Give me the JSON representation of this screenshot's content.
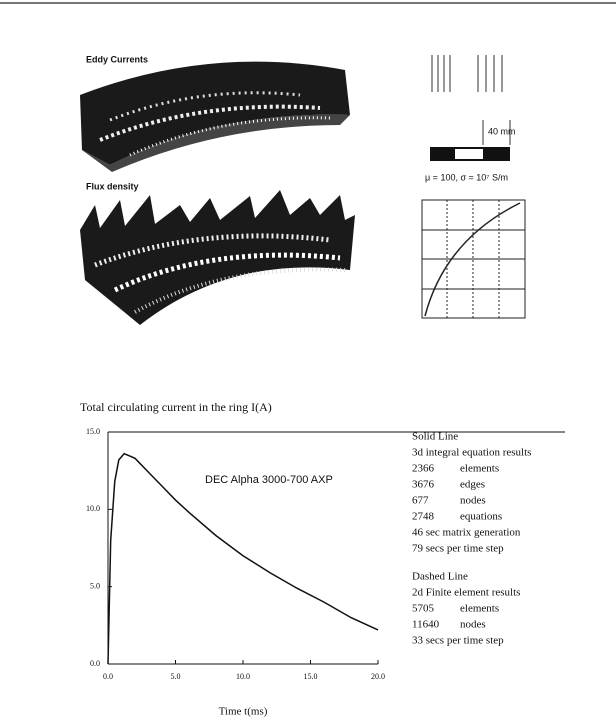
{
  "figure": {
    "eddy_label": "Eddy Currents",
    "flux_label": "Flux density",
    "dimension": "40 mm",
    "material": "μ = 100,   σ = 10⁷ S/m"
  },
  "chart_data": {
    "type": "line",
    "title": "Total circulating current in the ring I(A)",
    "xlabel": "Time t(ms)",
    "annotation": "DEC Alpha 3000-700 AXP",
    "x": [
      0,
      0.2,
      0.5,
      0.8,
      1.2,
      2,
      3,
      4,
      5,
      6,
      8,
      10,
      12,
      14,
      16,
      18,
      20
    ],
    "series": [
      {
        "color": "#111111",
        "values": [
          0,
          8,
          11.8,
          13.2,
          13.6,
          13.3,
          12.4,
          11.5,
          10.6,
          9.8,
          8.3,
          7.0,
          5.9,
          4.9,
          4.0,
          3.0,
          2.2
        ]
      }
    ],
    "xlim": [
      0,
      20
    ],
    "ylim": [
      0,
      15
    ],
    "xticks": [
      {
        "value": 0,
        "label": "0.0"
      },
      {
        "value": 5,
        "label": "5.0"
      },
      {
        "value": 10,
        "label": "10.0"
      },
      {
        "value": 15,
        "label": "15.0"
      },
      {
        "value": 20,
        "label": "20.0"
      }
    ],
    "yticks": [
      {
        "value": 0,
        "label": "0.0"
      },
      {
        "value": 5,
        "label": "5.0"
      },
      {
        "value": 10,
        "label": "10.0"
      },
      {
        "value": 15,
        "label": "15.0"
      }
    ]
  },
  "notes": [
    {
      "heading": "Solid Line",
      "method": "3d integral equation results",
      "rows": [
        [
          "2366",
          "elements"
        ],
        [
          "3676",
          "edges"
        ],
        [
          "677",
          "nodes"
        ],
        [
          "2748",
          "equations"
        ]
      ],
      "lines": [
        "46 sec matrix generation",
        "79 secs per time step"
      ]
    },
    {
      "heading": "Dashed Line",
      "method": "2d Finite element results",
      "rows": [
        [
          "5705",
          "elements"
        ],
        [
          "11640",
          "nodes"
        ]
      ],
      "lines": [
        "33 secs per time step"
      ]
    }
  ]
}
